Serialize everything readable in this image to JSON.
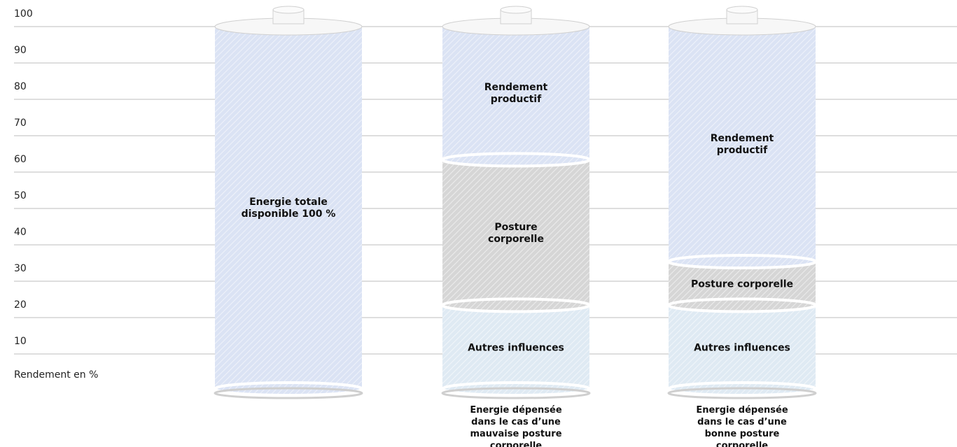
{
  "chart_data": {
    "type": "bar",
    "stacked": true,
    "y_label": "Rendement en %",
    "categories": [
      null,
      "Energie dépensée dans le cas d’une mauvaise posture corporelle",
      "Energie dépensée dans le cas d’une bonne posture corporelle"
    ],
    "series": [
      {
        "name": "Energie totale disponible 100 %",
        "color": "#dbe3f4",
        "values": [
          100,
          null,
          null
        ]
      },
      {
        "name": "Autres influences",
        "color": "#dfeaf3",
        "values": [
          null,
          23,
          23
        ]
      },
      {
        "name": "Posture corporelle",
        "color": "#d6d6d6",
        "values": [
          null,
          40,
          12
        ]
      },
      {
        "name": "Rendement productif",
        "color": "#dbe3f4",
        "values": [
          null,
          37,
          65
        ]
      }
    ],
    "ylim": [
      0,
      100
    ],
    "yticks": [
      10,
      20,
      30,
      40,
      50,
      60,
      70,
      80,
      90,
      100
    ],
    "grid": true
  }
}
